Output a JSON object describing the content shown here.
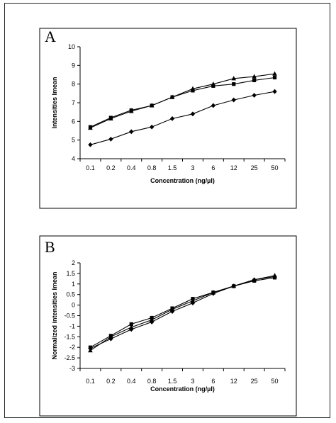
{
  "chart_data": [
    {
      "panel_label": "A",
      "type": "line",
      "xlabel": "Concentration (ng/µl)",
      "ylabel": "Intensities Imean",
      "categories": [
        "0.1",
        "0.2",
        "0.4",
        "0.8",
        "1.5",
        "3",
        "6",
        "12",
        "25",
        "50"
      ],
      "ylim": [
        4,
        10
      ],
      "yticks": [
        4,
        5,
        6,
        7,
        8,
        9,
        10
      ],
      "grid": false,
      "series": [
        {
          "marker": "square",
          "values": [
            5.7,
            6.2,
            6.6,
            6.85,
            7.3,
            7.65,
            7.9,
            8.0,
            8.2,
            8.35
          ]
        },
        {
          "marker": "triangle",
          "values": [
            5.65,
            6.15,
            6.55,
            6.85,
            7.3,
            7.75,
            8.0,
            8.3,
            8.4,
            8.55
          ]
        },
        {
          "marker": "diamond",
          "values": [
            4.75,
            5.05,
            5.45,
            5.7,
            6.15,
            6.4,
            6.85,
            7.15,
            7.4,
            7.6
          ]
        }
      ]
    },
    {
      "panel_label": "B",
      "type": "line",
      "xlabel": "Concentration (ng/µl)",
      "ylabel": "Normalized intensities Imean",
      "categories": [
        "0.1",
        "0.2",
        "0.4",
        "0.8",
        "1.5",
        "3",
        "6",
        "12",
        "25",
        "50"
      ],
      "ylim": [
        -3,
        2
      ],
      "yticks": [
        -3,
        -2.5,
        -2,
        -1.5,
        -1,
        -0.5,
        0,
        0.5,
        1,
        1.5,
        2
      ],
      "ytick_labels": [
        "-3",
        "-2.5",
        "-2",
        "-1.5",
        "-1",
        "-0.5",
        "0",
        "0.5",
        "1",
        "1.5",
        "2"
      ],
      "grid": false,
      "series": [
        {
          "marker": "square",
          "values": [
            -2.0,
            -1.45,
            -0.9,
            -0.6,
            -0.15,
            0.3,
            0.6,
            0.9,
            1.15,
            1.3
          ]
        },
        {
          "marker": "triangle",
          "values": [
            -2.15,
            -1.5,
            -1.05,
            -0.7,
            -0.2,
            0.2,
            0.6,
            0.9,
            1.2,
            1.4
          ]
        },
        {
          "marker": "diamond",
          "values": [
            -2.05,
            -1.6,
            -1.15,
            -0.8,
            -0.3,
            0.1,
            0.55,
            0.9,
            1.2,
            1.35
          ]
        }
      ]
    }
  ]
}
